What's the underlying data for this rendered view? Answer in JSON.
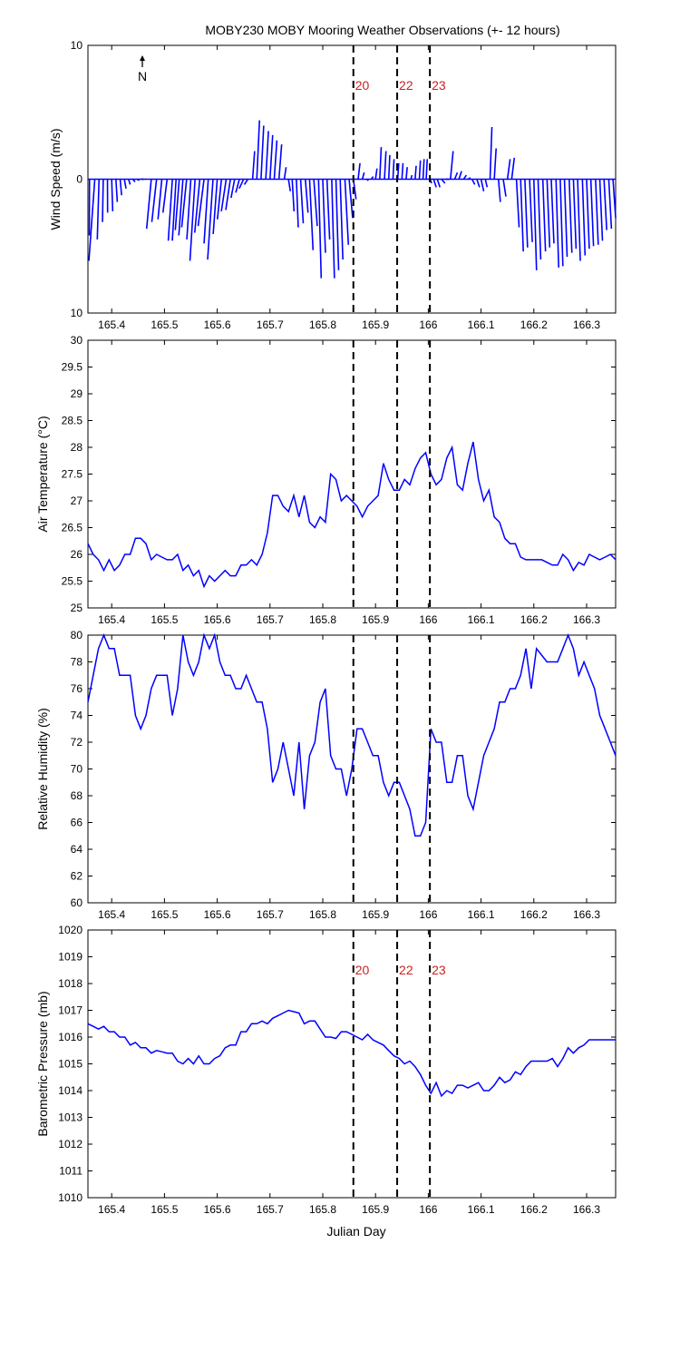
{
  "title": "MOBY230 MOBY Mooring Weather Observations (+- 12 hours)",
  "colors": {
    "series": "#0000ff",
    "event_label": "#cc2222",
    "axis": "#000000"
  },
  "x_axis": {
    "label": "Julian Day",
    "range": [
      165.355,
      166.355
    ],
    "ticks": [
      165.4,
      165.5,
      165.6,
      165.7,
      165.8,
      165.9,
      166.0,
      166.1,
      166.2,
      166.3
    ],
    "tick_labels": [
      "165.4",
      "165.5",
      "165.6",
      "165.7",
      "165.8",
      "165.9",
      "166",
      "166.1",
      "166.2",
      "166.3"
    ]
  },
  "events": [
    {
      "label": "20",
      "x": 165.858
    },
    {
      "label": "22",
      "x": 165.941
    },
    {
      "label": "23",
      "x": 166.003
    }
  ],
  "north_label": "N",
  "chart_data": [
    {
      "type": "vector",
      "ylabel": "Wind Speed (m/s)",
      "ylim": [
        -10,
        10
      ],
      "yticks": [
        -10,
        0,
        10
      ],
      "ytick_labels": [
        "10",
        "0",
        "10"
      ],
      "show_event_labels": true,
      "x": [
        165.358,
        165.368,
        165.376,
        165.384,
        165.392,
        165.4,
        165.408,
        165.416,
        165.424,
        165.432,
        165.44,
        165.448,
        165.456,
        165.464,
        165.475,
        165.485,
        165.495,
        165.505,
        165.515,
        165.522,
        165.528,
        165.535,
        165.542,
        165.55,
        165.558,
        165.567,
        165.575,
        165.583,
        165.592,
        165.6,
        165.608,
        165.617,
        165.625,
        165.633,
        165.642,
        165.65,
        165.658,
        165.667,
        165.675,
        165.683,
        165.692,
        165.7,
        165.708,
        165.717,
        165.727,
        165.735,
        165.742,
        165.75,
        165.758,
        165.767,
        165.775,
        165.783,
        165.792,
        165.8,
        165.808,
        165.817,
        165.825,
        165.833,
        165.842,
        165.85,
        165.858,
        165.867,
        165.875,
        165.883,
        165.892,
        165.9,
        165.908,
        165.917,
        165.925,
        165.933,
        165.942,
        165.95,
        165.958,
        165.967,
        165.975,
        165.983,
        165.99,
        165.996,
        166.003,
        166.01,
        166.017,
        166.025,
        166.033,
        166.042,
        166.05,
        166.058,
        166.067,
        166.075,
        166.083,
        166.092,
        166.1,
        166.108,
        166.117,
        166.125,
        166.133,
        166.142,
        166.15,
        166.158,
        166.167,
        166.175,
        166.183,
        166.192,
        166.2,
        166.208,
        166.217,
        166.225,
        166.233,
        166.242,
        166.25,
        166.258,
        166.267,
        166.275,
        166.283,
        166.292,
        166.3,
        166.308,
        166.317,
        166.325,
        166.333,
        166.342,
        166.35
      ],
      "u": [
        -0.3,
        -0.6,
        -0.5,
        -0.4,
        -0.3,
        -0.2,
        -0.2,
        -0.2,
        -0.2,
        -0.2,
        -0.1,
        -0.1,
        -0.05,
        -0.05,
        -0.5,
        -0.5,
        -0.4,
        -0.4,
        -0.4,
        -0.4,
        -0.4,
        -0.4,
        -0.5,
        -0.4,
        -0.5,
        -0.5,
        -0.6,
        -0.4,
        -0.5,
        -0.3,
        -0.3,
        -0.4,
        -0.4,
        -0.3,
        -0.3,
        -0.4,
        -0.3,
        0.2,
        0.3,
        0.3,
        0.3,
        0.3,
        0.3,
        0.3,
        0.2,
        0.2,
        0.2,
        0.2,
        0.3,
        0.3,
        0.4,
        0.4,
        0.3,
        0.3,
        0.3,
        0.3,
        0.3,
        0.3,
        0.4,
        0.4,
        0.3,
        0.2,
        0.2,
        0.2,
        0.2,
        0.15,
        0.15,
        0.15,
        0.1,
        0.1,
        0.1,
        0.1,
        0.1,
        0.1,
        0.1,
        0.1,
        0.1,
        0.1,
        0.2,
        0.3,
        0.3,
        0.4,
        0.4,
        0.3,
        0.3,
        0.3,
        0.3,
        0.3,
        0.3,
        0.3,
        0.3,
        0.2,
        0.2,
        0.2,
        0.2,
        0.3,
        0.3,
        0.3,
        0.3,
        0.3,
        0.3,
        0.3,
        0.3,
        0.3,
        0.3,
        0.3,
        0.3,
        0.3,
        0.3,
        0.3,
        0.3,
        0.3,
        0.3,
        0.3,
        0.3,
        0.3,
        0.3,
        0.3,
        0.3,
        0.3,
        0.3
      ],
      "v": [
        -4.2,
        -6.1,
        -4.5,
        -3.2,
        -2.5,
        -2.4,
        -1.7,
        -1.2,
        -0.7,
        -0.4,
        -0.2,
        -0.1,
        0.0,
        0.0,
        -3.7,
        -3.2,
        -3.0,
        -2.5,
        -4.6,
        -4.6,
        -3.8,
        -4.2,
        -3.6,
        -4.5,
        -6.1,
        -4.0,
        -3.5,
        -4.8,
        -6.0,
        -4.1,
        -3.0,
        -2.4,
        -2.3,
        -1.4,
        -1.0,
        -0.7,
        -0.4,
        2.1,
        4.4,
        4.0,
        3.6,
        3.3,
        2.9,
        2.6,
        0.9,
        -0.9,
        -2.4,
        -3.6,
        -3.3,
        -2.5,
        -5.3,
        -3.5,
        -7.4,
        -5.5,
        -4.5,
        -7.4,
        -6.8,
        -6.0,
        -4.9,
        -2.9,
        -1.5,
        1.2,
        0.5,
        -0.1,
        0.2,
        0.8,
        2.4,
        2.1,
        1.8,
        1.5,
        1.2,
        1.2,
        0.9,
        0.3,
        1.0,
        1.4,
        1.5,
        1.5,
        -0.3,
        -0.6,
        -0.6,
        -0.3,
        0.0,
        2.1,
        0.5,
        0.6,
        0.3,
        0.1,
        -0.4,
        -0.6,
        -0.9,
        -0.6,
        3.9,
        2.3,
        -1.7,
        -1.3,
        1.5,
        1.6,
        -3.6,
        -5.4,
        -5.1,
        -4.7,
        -6.8,
        -6.0,
        -5.4,
        -5.1,
        -4.8,
        -6.6,
        -6.5,
        -5.8,
        -5.5,
        -5.2,
        -6.1,
        -5.7,
        -5.2,
        -5.0,
        -4.9,
        -4.6,
        -3.8,
        -3.7,
        -2.9
      ],
      "tail_dx": [
        2.4,
        -1.2,
        2.5,
        2.7,
        2.8,
        2.9,
        3.3,
        3.4,
        3.6,
        3.5,
        3.4,
        3.3,
        3.2,
        0,
        -0.7,
        -0.8,
        -0.7,
        -1.0,
        -1.0,
        -0.6,
        -0.8,
        -1.0,
        -1.0,
        -0.9,
        -1.2,
        -1.2,
        -1.2,
        -1.1,
        -1.5,
        -1.8,
        -1.8,
        -1.8,
        -1.6,
        -1.3,
        -1.3,
        -1.3,
        -1.2,
        0.5,
        0.3,
        0.3,
        0.3,
        0.3,
        0.3,
        0.3,
        0.3,
        0.3,
        0.3,
        0.3,
        0.3,
        0.3,
        0.3,
        0.3,
        0.3,
        0.3,
        0.3,
        0.3,
        0.3,
        0.3,
        0.3,
        0.3,
        0.3,
        0.3,
        0.3,
        0.3,
        0.3,
        0.3,
        0.3,
        0.3,
        0.3,
        0.3,
        0.3,
        0.3,
        0.3,
        0.3,
        0.3,
        0.3,
        0.3,
        0.3,
        0.3,
        0.3,
        0.3,
        0.3,
        0.3,
        0.3,
        0.3,
        0.3,
        0.3,
        0.3,
        0.3,
        0.3,
        0.3,
        0.3,
        0.3,
        0.3,
        0.3,
        0.3,
        0.3,
        0.3,
        0.3,
        0.3,
        0.3,
        0.3,
        0.3,
        0.3,
        0.3,
        0.3,
        0.3,
        0.3,
        0.3,
        0.3,
        0.3,
        0.3,
        0.3,
        0.3,
        0.3,
        0.3,
        0.3,
        0.3,
        0.3,
        0.3,
        0.3
      ]
    },
    {
      "type": "line",
      "ylabel": "Air Temperature (°C)",
      "ylim": [
        25,
        30
      ],
      "yticks": [
        25,
        25.5,
        26,
        26.5,
        27,
        27.5,
        28,
        28.5,
        29,
        29.5,
        30
      ],
      "ytick_labels": [
        "25",
        "25.5",
        "26",
        "26.5",
        "27",
        "27.5",
        "28",
        "28.5",
        "29",
        "29.5",
        "30"
      ],
      "show_event_labels": false,
      "x": [
        165.355,
        165.365,
        165.375,
        165.385,
        165.395,
        165.405,
        165.415,
        165.425,
        165.435,
        165.445,
        165.455,
        165.465,
        165.475,
        165.485,
        165.495,
        165.505,
        165.515,
        165.525,
        165.535,
        165.545,
        165.555,
        165.565,
        165.575,
        165.585,
        165.595,
        165.605,
        165.615,
        165.625,
        165.635,
        165.645,
        165.655,
        165.665,
        165.675,
        165.685,
        165.695,
        165.705,
        165.715,
        165.725,
        165.735,
        165.745,
        165.755,
        165.765,
        165.775,
        165.785,
        165.795,
        165.805,
        165.815,
        165.825,
        165.835,
        165.845,
        165.855,
        165.865,
        165.875,
        165.885,
        165.895,
        165.905,
        165.915,
        165.925,
        165.935,
        165.945,
        165.955,
        165.965,
        165.975,
        165.985,
        165.995,
        166.005,
        166.015,
        166.025,
        166.035,
        166.045,
        166.055,
        166.065,
        166.075,
        166.085,
        166.095,
        166.105,
        166.115,
        166.125,
        166.135,
        166.145,
        166.155,
        166.165,
        166.175,
        166.185,
        166.195,
        166.205,
        166.215,
        166.225,
        166.235,
        166.245,
        166.255,
        166.265,
        166.275,
        166.285,
        166.295,
        166.305,
        166.315,
        166.325,
        166.335,
        166.345,
        166.355
      ],
      "values": [
        26.2,
        26.0,
        25.9,
        25.7,
        25.9,
        25.7,
        25.8,
        26.0,
        26.0,
        26.3,
        26.3,
        26.2,
        25.9,
        26.0,
        25.95,
        25.9,
        25.9,
        26.0,
        25.7,
        25.8,
        25.6,
        25.7,
        25.4,
        25.6,
        25.5,
        25.6,
        25.7,
        25.6,
        25.6,
        25.8,
        25.8,
        25.9,
        25.8,
        26.0,
        26.4,
        27.1,
        27.1,
        26.9,
        26.8,
        27.1,
        26.7,
        27.1,
        26.6,
        26.5,
        26.7,
        26.6,
        27.5,
        27.4,
        27.0,
        27.1,
        27.0,
        26.9,
        26.7,
        26.9,
        27.0,
        27.1,
        27.7,
        27.4,
        27.2,
        27.2,
        27.4,
        27.3,
        27.6,
        27.8,
        27.9,
        27.5,
        27.3,
        27.4,
        27.8,
        28.0,
        27.3,
        27.2,
        27.7,
        28.1,
        27.4,
        27.0,
        27.2,
        26.7,
        26.6,
        26.3,
        26.2,
        26.2,
        25.95,
        25.9,
        25.9,
        25.9,
        25.9,
        25.85,
        25.8,
        25.8,
        26.0,
        25.9,
        25.7,
        25.85,
        25.8,
        26.0,
        25.95,
        25.9,
        25.95,
        26.0,
        25.9
      ]
    },
    {
      "type": "line",
      "ylabel": "Relative Humidity (%)",
      "ylim": [
        60,
        80
      ],
      "yticks": [
        60,
        62,
        64,
        66,
        68,
        70,
        72,
        74,
        76,
        78,
        80
      ],
      "ytick_labels": [
        "60",
        "62",
        "64",
        "66",
        "68",
        "70",
        "72",
        "74",
        "76",
        "78",
        "80"
      ],
      "show_event_labels": false,
      "x": [
        165.355,
        165.365,
        165.375,
        165.385,
        165.395,
        165.405,
        165.415,
        165.425,
        165.435,
        165.445,
        165.455,
        165.465,
        165.475,
        165.485,
        165.495,
        165.505,
        165.515,
        165.525,
        165.535,
        165.545,
        165.555,
        165.565,
        165.575,
        165.585,
        165.595,
        165.605,
        165.615,
        165.625,
        165.635,
        165.645,
        165.655,
        165.665,
        165.675,
        165.685,
        165.695,
        165.705,
        165.715,
        165.725,
        165.735,
        165.745,
        165.755,
        165.765,
        165.775,
        165.785,
        165.795,
        165.805,
        165.815,
        165.825,
        165.835,
        165.845,
        165.855,
        165.865,
        165.875,
        165.885,
        165.895,
        165.905,
        165.915,
        165.925,
        165.935,
        165.945,
        165.955,
        165.965,
        165.975,
        165.985,
        165.995,
        166.005,
        166.015,
        166.025,
        166.035,
        166.045,
        166.055,
        166.065,
        166.075,
        166.085,
        166.095,
        166.105,
        166.115,
        166.125,
        166.135,
        166.145,
        166.155,
        166.165,
        166.175,
        166.185,
        166.195,
        166.205,
        166.215,
        166.225,
        166.235,
        166.245,
        166.255,
        166.265,
        166.275,
        166.285,
        166.295,
        166.305,
        166.315,
        166.325,
        166.335,
        166.345,
        166.355
      ],
      "values": [
        75,
        77,
        79,
        80,
        79,
        79,
        77,
        77,
        77,
        74,
        73,
        74,
        76,
        77,
        77,
        77,
        74,
        76,
        80,
        78,
        77,
        78,
        80,
        79,
        80,
        78,
        77,
        77,
        76,
        76,
        77,
        76,
        75,
        75,
        73,
        69,
        70,
        72,
        70,
        68,
        72,
        67,
        71,
        72,
        75,
        76,
        71,
        70,
        70,
        68,
        70,
        73,
        73,
        72,
        71,
        71,
        69,
        68,
        69,
        69,
        68,
        67,
        65,
        65,
        66,
        73,
        72,
        72,
        69,
        69,
        71,
        71,
        68,
        67,
        69,
        71,
        72,
        73,
        75,
        75,
        76,
        76,
        77,
        79,
        76,
        79,
        78.5,
        78,
        78,
        78,
        79,
        80,
        79,
        77,
        78,
        77,
        76,
        74,
        73,
        72,
        71
      ]
    },
    {
      "type": "line",
      "ylabel": "Barometric Pressure (mb)",
      "ylim": [
        1010,
        1020
      ],
      "yticks": [
        1010,
        1011,
        1012,
        1013,
        1014,
        1015,
        1016,
        1017,
        1018,
        1019,
        1020
      ],
      "ytick_labels": [
        "1010",
        "1011",
        "1012",
        "1013",
        "1014",
        "1015",
        "1016",
        "1017",
        "1018",
        "1019",
        "1020"
      ],
      "show_event_labels": true,
      "x": [
        165.355,
        165.365,
        165.375,
        165.385,
        165.395,
        165.405,
        165.415,
        165.425,
        165.435,
        165.445,
        165.455,
        165.465,
        165.475,
        165.485,
        165.495,
        165.505,
        165.515,
        165.525,
        165.535,
        165.545,
        165.555,
        165.565,
        165.575,
        165.585,
        165.595,
        165.605,
        165.615,
        165.625,
        165.635,
        165.645,
        165.655,
        165.665,
        165.675,
        165.685,
        165.695,
        165.705,
        165.715,
        165.725,
        165.735,
        165.745,
        165.755,
        165.765,
        165.775,
        165.785,
        165.795,
        165.805,
        165.815,
        165.825,
        165.835,
        165.845,
        165.855,
        165.865,
        165.875,
        165.885,
        165.895,
        165.905,
        165.915,
        165.925,
        165.935,
        165.945,
        165.955,
        165.965,
        165.975,
        165.985,
        165.995,
        166.005,
        166.015,
        166.025,
        166.035,
        166.045,
        166.055,
        166.065,
        166.075,
        166.085,
        166.095,
        166.105,
        166.115,
        166.125,
        166.135,
        166.145,
        166.155,
        166.165,
        166.175,
        166.185,
        166.195,
        166.205,
        166.215,
        166.225,
        166.235,
        166.245,
        166.255,
        166.265,
        166.275,
        166.285,
        166.295,
        166.305,
        166.315,
        166.325,
        166.335,
        166.345,
        166.355
      ],
      "values": [
        1016.5,
        1016.4,
        1016.3,
        1016.4,
        1016.2,
        1016.2,
        1016.0,
        1016.0,
        1015.7,
        1015.8,
        1015.6,
        1015.6,
        1015.4,
        1015.5,
        1015.45,
        1015.4,
        1015.4,
        1015.1,
        1015.0,
        1015.2,
        1015.0,
        1015.3,
        1015.0,
        1015.0,
        1015.2,
        1015.3,
        1015.6,
        1015.7,
        1015.7,
        1016.2,
        1016.2,
        1016.5,
        1016.5,
        1016.6,
        1016.5,
        1016.7,
        1016.8,
        1016.9,
        1017.0,
        1016.95,
        1016.9,
        1016.5,
        1016.6,
        1016.6,
        1016.3,
        1016.0,
        1016.0,
        1015.95,
        1016.2,
        1016.2,
        1016.1,
        1016.0,
        1015.9,
        1016.1,
        1015.9,
        1015.8,
        1015.7,
        1015.5,
        1015.3,
        1015.2,
        1015.0,
        1015.1,
        1014.9,
        1014.6,
        1014.2,
        1013.9,
        1014.3,
        1013.8,
        1014.0,
        1013.9,
        1014.2,
        1014.2,
        1014.1,
        1014.2,
        1014.3,
        1014.0,
        1014.0,
        1014.2,
        1014.5,
        1014.3,
        1014.4,
        1014.7,
        1014.6,
        1014.9,
        1015.1,
        1015.1,
        1015.1,
        1015.1,
        1015.2,
        1014.9,
        1015.2,
        1015.6,
        1015.4,
        1015.6,
        1015.7,
        1015.9,
        1015.9,
        1015.9,
        1015.9,
        1015.9,
        1015.9
      ]
    }
  ]
}
